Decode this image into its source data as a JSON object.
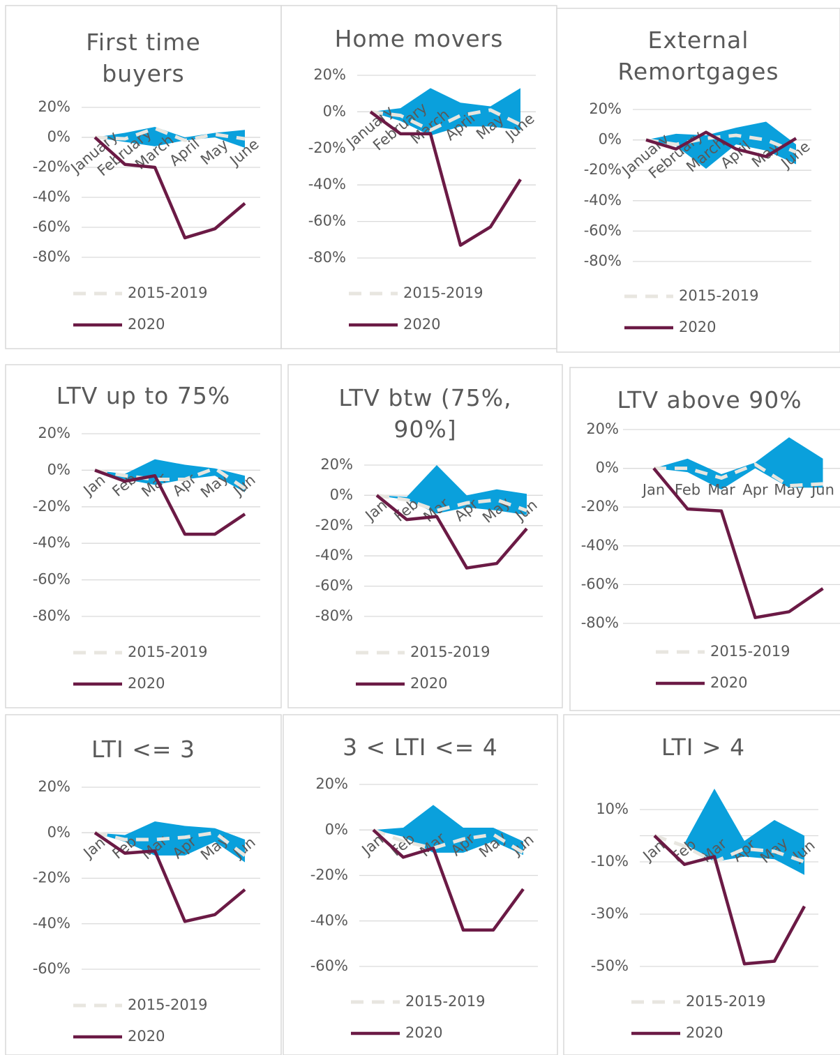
{
  "chart_data": [
    {
      "type": "line",
      "title": "First time buyers",
      "categories": [
        "January",
        "February",
        "March",
        "April",
        "May",
        "June"
      ],
      "band": {
        "color": "#0aa0dc",
        "high": [
          0,
          3,
          7,
          0,
          3,
          5
        ],
        "low": [
          0,
          -3,
          -6,
          -2,
          0,
          -7
        ]
      },
      "series": [
        {
          "name": "2015-2019",
          "color": "#e8e6e0",
          "dashed": true,
          "values": [
            0,
            -1,
            6,
            -2,
            2,
            -1
          ]
        },
        {
          "name": "2020",
          "color": "#6b1a45",
          "dashed": false,
          "values": [
            0,
            -18,
            -20,
            -67,
            -61,
            -44
          ]
        }
      ],
      "ylim": [
        -80,
        20
      ],
      "yticks": [
        {
          "value": 20,
          "label": "20%"
        },
        {
          "value": 0,
          "label": "0%"
        },
        {
          "value": -20,
          "label": "-20%"
        },
        {
          "value": -40,
          "label": "-40%"
        },
        {
          "value": -60,
          "label": "-60%"
        },
        {
          "value": -80,
          "label": "-80%"
        }
      ],
      "grid": true
    },
    {
      "type": "line",
      "title": "Home movers",
      "categories": [
        "January",
        "February",
        "March",
        "April",
        "May",
        "June"
      ],
      "band": {
        "color": "#0aa0dc",
        "high": [
          0,
          2,
          13,
          5,
          3,
          13
        ],
        "low": [
          0,
          -5,
          -13,
          -8,
          -8,
          -10
        ]
      },
      "series": [
        {
          "name": "2015-2019",
          "color": "#e8e6e0",
          "dashed": true,
          "values": [
            0,
            -2,
            -10,
            -2,
            1,
            -7
          ]
        },
        {
          "name": "2020",
          "color": "#6b1a45",
          "dashed": false,
          "values": [
            0,
            -12,
            -12,
            -73,
            -63,
            -37
          ]
        }
      ],
      "ylim": [
        -80,
        20
      ],
      "yticks": [
        {
          "value": 20,
          "label": "20%"
        },
        {
          "value": 0,
          "label": "0%"
        },
        {
          "value": -20,
          "label": "-20%"
        },
        {
          "value": -40,
          "label": "-40%"
        },
        {
          "value": -60,
          "label": "-60%"
        },
        {
          "value": -80,
          "label": "-80%"
        }
      ],
      "grid": true
    },
    {
      "type": "line",
      "title": "External Remortgages",
      "categories": [
        "January",
        "February",
        "March",
        "April",
        "May",
        "June"
      ],
      "band": {
        "color": "#0aa0dc",
        "high": [
          0,
          4,
          3,
          8,
          12,
          -3
        ],
        "low": [
          0,
          -4,
          -19,
          -3,
          -7,
          -16
        ]
      },
      "series": [
        {
          "name": "2015-2019",
          "color": "#e8e6e0",
          "dashed": true,
          "values": [
            0,
            -3,
            1,
            3,
            0,
            -8
          ]
        },
        {
          "name": "2020",
          "color": "#6b1a45",
          "dashed": false,
          "values": [
            0,
            -6,
            5,
            -6,
            -11,
            1
          ]
        }
      ],
      "ylim": [
        -80,
        20
      ],
      "yticks": [
        {
          "value": 20,
          "label": "20%"
        },
        {
          "value": 0,
          "label": "0%"
        },
        {
          "value": -20,
          "label": "-20%"
        },
        {
          "value": -40,
          "label": "-40%"
        },
        {
          "value": -60,
          "label": "-60%"
        },
        {
          "value": -80,
          "label": "-80%"
        }
      ],
      "grid": true
    },
    {
      "type": "line",
      "title": "LTV up to 75%",
      "categories": [
        "Jan",
        "Feb",
        "Mar",
        "Apr",
        "May",
        "Jun"
      ],
      "band": {
        "color": "#0aa0dc",
        "high": [
          0,
          -2,
          6,
          3,
          1,
          -3
        ],
        "low": [
          0,
          -5,
          -8,
          -5,
          -3,
          -12
        ]
      },
      "series": [
        {
          "name": "2015-2019",
          "color": "#e8e6e0",
          "dashed": true,
          "values": [
            0,
            -3,
            -5,
            -5,
            1,
            -10
          ]
        },
        {
          "name": "2020",
          "color": "#6b1a45",
          "dashed": false,
          "values": [
            0,
            -6,
            -3,
            -35,
            -35,
            -24
          ]
        }
      ],
      "ylim": [
        -80,
        20
      ],
      "yticks": [
        {
          "value": 20,
          "label": "20%"
        },
        {
          "value": 0,
          "label": "0%"
        },
        {
          "value": -20,
          "label": "-20%"
        },
        {
          "value": -40,
          "label": "-40%"
        },
        {
          "value": -60,
          "label": "-60%"
        },
        {
          "value": -80,
          "label": "-80%"
        }
      ],
      "grid": true
    },
    {
      "type": "line",
      "title": "LTV btw (75%, 90%]",
      "categories": [
        "Jan",
        "Feb",
        "Mar",
        "Apr",
        "May",
        "Jun"
      ],
      "band": {
        "color": "#0aa0dc",
        "high": [
          0,
          -1,
          20,
          0,
          4,
          1
        ],
        "low": [
          0,
          -3,
          -12,
          -8,
          -10,
          -13
        ]
      },
      "series": [
        {
          "name": "2015-2019",
          "color": "#e8e6e0",
          "dashed": true,
          "values": [
            0,
            -3,
            -10,
            -5,
            -3,
            -10
          ]
        },
        {
          "name": "2020",
          "color": "#6b1a45",
          "dashed": false,
          "values": [
            0,
            -16,
            -14,
            -48,
            -45,
            -22
          ]
        }
      ],
      "ylim": [
        -80,
        20
      ],
      "yticks": [
        {
          "value": 20,
          "label": "20%"
        },
        {
          "value": 0,
          "label": "0%"
        },
        {
          "value": -20,
          "label": "-20%"
        },
        {
          "value": -40,
          "label": "-40%"
        },
        {
          "value": -60,
          "label": "-60%"
        },
        {
          "value": -80,
          "label": "-80%"
        }
      ],
      "grid": true
    },
    {
      "type": "line",
      "title": "LTV above 90%",
      "categories": [
        "Jan",
        "Feb",
        "Mar",
        "Apr",
        "May",
        "Jun"
      ],
      "band": {
        "color": "#0aa0dc",
        "high": [
          0,
          5,
          -3,
          3,
          16,
          5
        ],
        "low": [
          0,
          -2,
          -11,
          0,
          -10,
          -10
        ]
      },
      "series": [
        {
          "name": "2015-2019",
          "color": "#e8e6e0",
          "dashed": true,
          "values": [
            0,
            0,
            -5,
            2,
            -9,
            -8
          ]
        },
        {
          "name": "2020",
          "color": "#6b1a45",
          "dashed": false,
          "values": [
            0,
            -21,
            -22,
            -77,
            -74,
            -62
          ]
        }
      ],
      "ylim": [
        -80,
        20
      ],
      "yticks": [
        {
          "value": 20,
          "label": "20%"
        },
        {
          "value": 0,
          "label": "0%"
        },
        {
          "value": -20,
          "label": "-20%"
        },
        {
          "value": -40,
          "label": "-40%"
        },
        {
          "value": -60,
          "label": "-60%"
        },
        {
          "value": -80,
          "label": "-80%"
        }
      ],
      "grid": true
    },
    {
      "type": "line",
      "title": "LTI <= 3",
      "categories": [
        "Jan",
        "Feb",
        "Mar",
        "Apr",
        "May",
        "Jun"
      ],
      "band": {
        "color": "#0aa0dc",
        "high": [
          0,
          -1,
          5,
          3,
          2,
          -3
        ],
        "low": [
          0,
          -4,
          -10,
          -10,
          -4,
          -13
        ]
      },
      "series": [
        {
          "name": "2015-2019",
          "color": "#e8e6e0",
          "dashed": true,
          "values": [
            0,
            -3,
            -3,
            -2,
            0,
            -10
          ]
        },
        {
          "name": "2020",
          "color": "#6b1a45",
          "dashed": false,
          "values": [
            0,
            -9,
            -8,
            -39,
            -36,
            -25
          ]
        }
      ],
      "ylim": [
        -60,
        20
      ],
      "yticks": [
        {
          "value": 20,
          "label": "20%"
        },
        {
          "value": 0,
          "label": "0%"
        },
        {
          "value": -20,
          "label": "-20%"
        },
        {
          "value": -40,
          "label": "-40%"
        },
        {
          "value": -60,
          "label": "-60%"
        }
      ],
      "grid": true
    },
    {
      "type": "line",
      "title": "3 < LTI <= 4",
      "categories": [
        "Jan",
        "Feb",
        "Mar",
        "Apr",
        "May",
        "Jun"
      ],
      "band": {
        "color": "#0aa0dc",
        "high": [
          0,
          1,
          11,
          1,
          1,
          -5
        ],
        "low": [
          0,
          -3,
          -10,
          -10,
          -5,
          -11
        ]
      },
      "series": [
        {
          "name": "2015-2019",
          "color": "#e8e6e0",
          "dashed": true,
          "values": [
            0,
            -5,
            -8,
            -4,
            -2,
            -10
          ]
        },
        {
          "name": "2020",
          "color": "#6b1a45",
          "dashed": false,
          "values": [
            0,
            -12,
            -8,
            -44,
            -44,
            -26
          ]
        }
      ],
      "ylim": [
        -60,
        20
      ],
      "yticks": [
        {
          "value": 20,
          "label": "20%"
        },
        {
          "value": 0,
          "label": "0%"
        },
        {
          "value": -20,
          "label": "-20%"
        },
        {
          "value": -40,
          "label": "-40%"
        },
        {
          "value": -60,
          "label": "-60%"
        }
      ],
      "grid": true
    },
    {
      "type": "line",
      "title": "LTI > 4",
      "categories": [
        "Jan",
        "Feb",
        "Mar",
        "Apr",
        "May",
        "Jun"
      ],
      "band": {
        "color": "#0aa0dc",
        "high": [
          0,
          -3,
          18,
          -2,
          6,
          0
        ],
        "low": [
          0,
          -3,
          -10,
          -8,
          -9,
          -15
        ]
      },
      "series": [
        {
          "name": "2015-2019",
          "color": "#e8e6e0",
          "dashed": true,
          "values": [
            0,
            -4,
            -10,
            -5,
            -6,
            -10
          ]
        },
        {
          "name": "2020",
          "color": "#6b1a45",
          "dashed": false,
          "values": [
            0,
            -11,
            -8,
            -49,
            -48,
            -27
          ]
        }
      ],
      "ylim": [
        -50,
        10
      ],
      "yticks": [
        {
          "value": 10,
          "label": "10%"
        },
        {
          "value": -10,
          "label": "-10%"
        },
        {
          "value": -30,
          "label": "-30%"
        },
        {
          "value": -50,
          "label": "-50%"
        }
      ],
      "grid": true
    }
  ]
}
